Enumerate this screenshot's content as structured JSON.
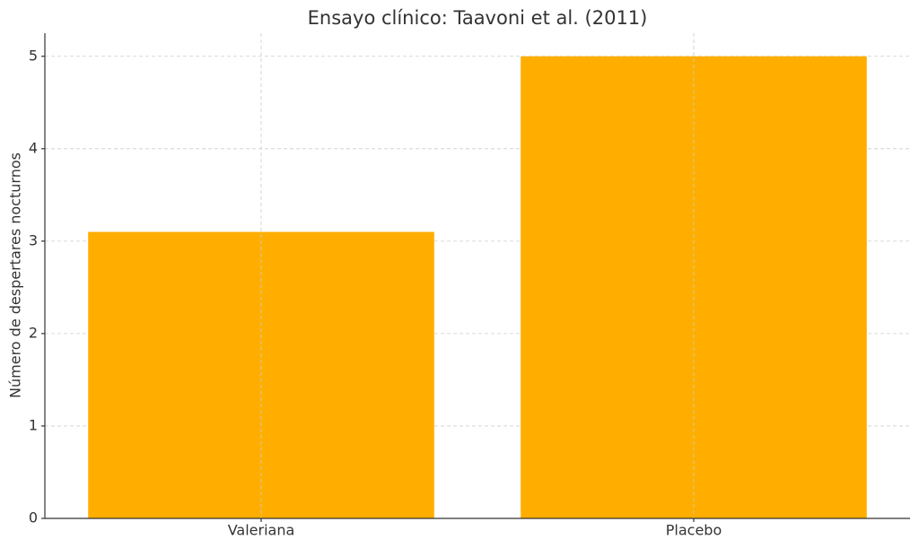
{
  "chart_data": {
    "type": "bar",
    "title": "Ensayo clínico: Taavoni et al. (2011)",
    "y_label": "Número de despertares nocturnos",
    "categories": [
      "Valeriana",
      "Placebo"
    ],
    "values": [
      3.1,
      5.0
    ],
    "color": "#ffae00",
    "ylim": [
      0,
      5.25
    ],
    "yticks": [
      0,
      1,
      2,
      3,
      4,
      5
    ],
    "grid": true
  }
}
